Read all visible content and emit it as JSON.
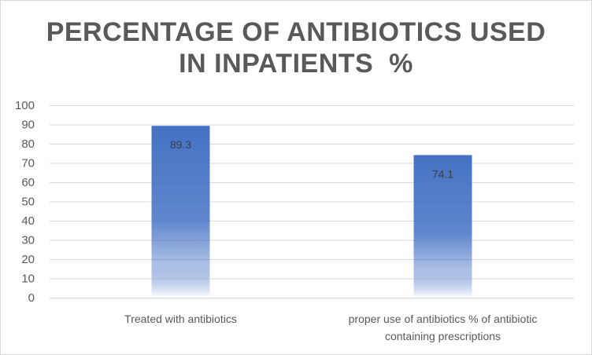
{
  "chart_data": {
    "type": "bar",
    "title_lines": [
      "PERCENTAGE OF ANTIBIOTICS USED",
      "IN INPATIENTS  %"
    ],
    "categories": [
      [
        "Treated with antibiotics"
      ],
      [
        "proper use of antibiotics % of antibiotic",
        "containing prescriptions"
      ]
    ],
    "values": [
      89.3,
      74.1
    ],
    "data_labels": [
      "89.3",
      "74.1"
    ],
    "ylim": [
      0,
      100
    ],
    "yticks": [
      0,
      10,
      20,
      30,
      40,
      50,
      60,
      70,
      80,
      90,
      100
    ],
    "grid": true,
    "legend": "none",
    "colors": {
      "bar": "#4472c4",
      "bar_fade": "#ffffff",
      "grid": "#d9d9d9",
      "axis": "#d9d9d9",
      "text": "#595959"
    }
  }
}
